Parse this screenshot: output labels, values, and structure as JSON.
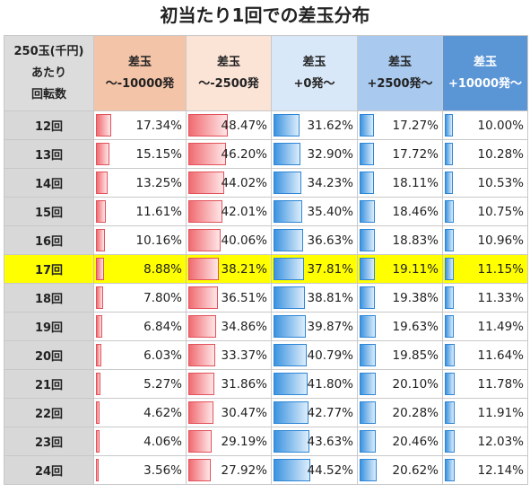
{
  "title": "初当たり1回での差玉分布",
  "header": {
    "corner": [
      "250玉(千円)",
      "あたり",
      "回転数"
    ],
    "columns": [
      [
        "差玉",
        "～-10000発"
      ],
      [
        "差玉",
        "～-2500発"
      ],
      [
        "差玉",
        "+0発～"
      ],
      [
        "差玉",
        "+2500発～"
      ],
      [
        "差玉",
        "+10000発～"
      ]
    ]
  },
  "column_colors": [
    "#f4c4a8",
    "#fbe3d6",
    "#d9e8f8",
    "#a9c9ee",
    "#5a95d6"
  ],
  "highlight_color": "#ffff00",
  "highlight_row": "17回",
  "rows": [
    {
      "label": "12回",
      "values": [
        "17.34%",
        "48.47%",
        "31.62%",
        "17.27%",
        "10.00%"
      ]
    },
    {
      "label": "13回",
      "values": [
        "15.15%",
        "46.20%",
        "32.90%",
        "17.72%",
        "10.28%"
      ]
    },
    {
      "label": "14回",
      "values": [
        "13.25%",
        "44.02%",
        "34.23%",
        "18.11%",
        "10.53%"
      ]
    },
    {
      "label": "15回",
      "values": [
        "11.61%",
        "42.01%",
        "35.40%",
        "18.46%",
        "10.75%"
      ]
    },
    {
      "label": "16回",
      "values": [
        "10.16%",
        "40.06%",
        "36.63%",
        "18.83%",
        "10.96%"
      ]
    },
    {
      "label": "17回",
      "values": [
        "8.88%",
        "38.21%",
        "37.81%",
        "19.11%",
        "11.15%"
      ]
    },
    {
      "label": "18回",
      "values": [
        "7.80%",
        "36.51%",
        "38.81%",
        "19.38%",
        "11.33%"
      ]
    },
    {
      "label": "19回",
      "values": [
        "6.84%",
        "34.86%",
        "39.87%",
        "19.63%",
        "11.49%"
      ]
    },
    {
      "label": "20回",
      "values": [
        "6.03%",
        "33.37%",
        "40.79%",
        "19.85%",
        "11.64%"
      ]
    },
    {
      "label": "21回",
      "values": [
        "5.27%",
        "31.86%",
        "41.80%",
        "20.10%",
        "11.78%"
      ]
    },
    {
      "label": "22回",
      "values": [
        "4.62%",
        "30.47%",
        "42.77%",
        "20.28%",
        "11.91%"
      ]
    },
    {
      "label": "23回",
      "values": [
        "4.06%",
        "29.19%",
        "43.63%",
        "20.46%",
        "12.03%"
      ]
    },
    {
      "label": "24回",
      "values": [
        "3.56%",
        "27.92%",
        "44.52%",
        "20.62%",
        "12.14%"
      ]
    }
  ]
}
